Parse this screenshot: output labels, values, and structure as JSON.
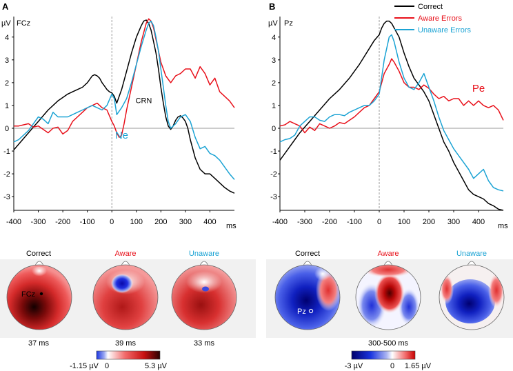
{
  "chart_data": [
    {
      "type": "line",
      "panel_label": "A",
      "channel": "FCz",
      "ylabel": "µV",
      "xlabel": "ms",
      "xlim": [
        -400,
        500
      ],
      "ylim": [
        -3.6,
        4.9
      ],
      "x_ticks": [
        -400,
        -300,
        -200,
        -100,
        0,
        100,
        200,
        300,
        400
      ],
      "y_ticks": [
        4,
        3,
        2,
        1,
        0,
        -1,
        -2,
        -3
      ],
      "x_tick_labels": [
        "-400",
        "-300",
        "-200",
        "-100",
        "0",
        "100",
        "200",
        "300",
        "400"
      ],
      "y_tick_labels": [
        "4",
        "3",
        "2",
        "1",
        "0",
        "-1",
        "-2",
        "-3"
      ],
      "annotations": [
        {
          "text": "CRN",
          "x": 130,
          "y": 1.1,
          "color": "#000000",
          "size": "small"
        },
        {
          "text": "Ne",
          "x": 40,
          "y": -0.45,
          "color": "#1ba3d4",
          "size": "large"
        }
      ],
      "series": [
        {
          "name": "Correct",
          "color": "#000000",
          "x": [
            -400,
            -380,
            -360,
            -340,
            -320,
            -300,
            -280,
            -260,
            -240,
            -220,
            -200,
            -180,
            -160,
            -140,
            -120,
            -100,
            -80,
            -70,
            -60,
            -50,
            -40,
            -30,
            -20,
            -10,
            0,
            10,
            20,
            40,
            60,
            80,
            100,
            120,
            130,
            140,
            150,
            160,
            170,
            180,
            190,
            200,
            210,
            220,
            230,
            240,
            250,
            260,
            270,
            280,
            290,
            300,
            310,
            320,
            340,
            360,
            380,
            400,
            420,
            440,
            460,
            480,
            500
          ],
          "y": [
            -0.95,
            -0.7,
            -0.45,
            -0.2,
            0.05,
            0.3,
            0.55,
            0.8,
            1.0,
            1.2,
            1.35,
            1.5,
            1.6,
            1.7,
            1.8,
            2.0,
            2.3,
            2.35,
            2.3,
            2.2,
            2.0,
            1.85,
            1.7,
            1.6,
            1.55,
            1.4,
            1.1,
            1.7,
            2.5,
            3.3,
            4.0,
            4.5,
            4.7,
            4.75,
            4.6,
            4.3,
            3.8,
            3.3,
            2.6,
            1.8,
            1.1,
            0.5,
            0.1,
            -0.05,
            0.1,
            0.35,
            0.5,
            0.55,
            0.45,
            0.3,
            0.0,
            -0.5,
            -1.3,
            -1.8,
            -2.0,
            -2.0,
            -2.2,
            -2.4,
            -2.6,
            -2.75,
            -2.85
          ]
        },
        {
          "name": "Aware Errors",
          "color": "#e8101a",
          "x": [
            -400,
            -380,
            -360,
            -340,
            -320,
            -300,
            -280,
            -260,
            -240,
            -220,
            -200,
            -180,
            -160,
            -140,
            -120,
            -100,
            -80,
            -60,
            -40,
            -20,
            0,
            10,
            20,
            30,
            40,
            50,
            60,
            80,
            100,
            120,
            140,
            150,
            160,
            170,
            180,
            190,
            200,
            220,
            240,
            260,
            280,
            300,
            320,
            340,
            360,
            380,
            400,
            420,
            440,
            460,
            480,
            500
          ],
          "y": [
            0.1,
            0.1,
            0.15,
            0.2,
            0.05,
            0.1,
            -0.05,
            -0.2,
            0.0,
            0.05,
            -0.25,
            -0.1,
            0.3,
            0.5,
            0.7,
            0.9,
            1.0,
            1.1,
            0.9,
            0.8,
            0.3,
            0.1,
            -0.2,
            -0.4,
            -0.3,
            0.2,
            0.8,
            1.8,
            2.8,
            3.8,
            4.6,
            4.8,
            4.7,
            4.4,
            3.9,
            3.4,
            2.9,
            2.3,
            2.0,
            2.3,
            2.4,
            2.6,
            2.6,
            2.2,
            2.7,
            2.4,
            1.9,
            2.2,
            1.6,
            1.4,
            1.2,
            0.9
          ]
        },
        {
          "name": "Unaware Errors",
          "color": "#1ba3d4",
          "x": [
            -400,
            -380,
            -360,
            -340,
            -320,
            -300,
            -280,
            -260,
            -240,
            -220,
            -200,
            -180,
            -160,
            -140,
            -120,
            -100,
            -80,
            -60,
            -40,
            -20,
            0,
            10,
            20,
            40,
            60,
            80,
            100,
            120,
            140,
            150,
            160,
            170,
            180,
            190,
            200,
            210,
            220,
            230,
            240,
            260,
            280,
            300,
            320,
            340,
            360,
            380,
            400,
            420,
            440,
            460,
            480,
            500
          ],
          "y": [
            -0.6,
            -0.5,
            -0.3,
            -0.1,
            0.2,
            0.5,
            0.4,
            0.2,
            0.7,
            0.5,
            0.5,
            0.5,
            0.6,
            0.7,
            0.8,
            0.9,
            1.0,
            0.9,
            0.8,
            1.0,
            1.5,
            1.3,
            0.6,
            0.9,
            1.3,
            2.0,
            2.8,
            3.6,
            4.3,
            4.6,
            4.7,
            4.5,
            4.0,
            3.4,
            2.6,
            1.8,
            1.0,
            0.3,
            0.0,
            0.2,
            0.5,
            0.6,
            0.3,
            -0.4,
            -0.9,
            -0.8,
            -1.1,
            -1.2,
            -1.4,
            -1.7,
            -2.0,
            -2.25
          ]
        }
      ]
    },
    {
      "type": "line",
      "panel_label": "B",
      "channel": "Pz",
      "ylabel": "µV",
      "xlabel": "ms",
      "xlim": [
        -400,
        500
      ],
      "ylim": [
        -3.6,
        4.9
      ],
      "x_ticks": [
        -400,
        -300,
        -200,
        -100,
        0,
        100,
        200,
        300,
        400
      ],
      "y_ticks": [
        4,
        3,
        2,
        1,
        0,
        -1,
        -2,
        -3
      ],
      "x_tick_labels": [
        "-400",
        "-300",
        "-200",
        "-100",
        "0",
        "100",
        "200",
        "300",
        "400"
      ],
      "y_tick_labels": [
        "4",
        "3",
        "2",
        "1",
        "0",
        "-1",
        "-2",
        "-3"
      ],
      "annotations": [
        {
          "text": "Pe",
          "x": 400,
          "y": 1.6,
          "color": "#e8101a",
          "size": "large"
        }
      ],
      "legend_position": "top-right",
      "series": [
        {
          "name": "Correct",
          "color": "#000000",
          "x": [
            -400,
            -380,
            -360,
            -340,
            -320,
            -300,
            -280,
            -260,
            -240,
            -220,
            -200,
            -180,
            -160,
            -140,
            -120,
            -100,
            -80,
            -60,
            -40,
            -20,
            0,
            10,
            20,
            30,
            40,
            50,
            60,
            80,
            100,
            120,
            140,
            160,
            180,
            200,
            220,
            240,
            260,
            280,
            300,
            320,
            340,
            360,
            380,
            400,
            420,
            440,
            460,
            480,
            500
          ],
          "y": [
            -1.4,
            -1.1,
            -0.8,
            -0.5,
            -0.2,
            0.05,
            0.3,
            0.55,
            0.8,
            1.05,
            1.3,
            1.5,
            1.7,
            1.95,
            2.2,
            2.5,
            2.8,
            3.15,
            3.5,
            3.85,
            4.1,
            4.4,
            4.6,
            4.7,
            4.7,
            4.6,
            4.4,
            4.0,
            3.3,
            2.7,
            2.2,
            1.9,
            1.6,
            1.2,
            0.6,
            0.0,
            -0.6,
            -1.0,
            -1.5,
            -1.9,
            -2.3,
            -2.7,
            -2.9,
            -3.0,
            -3.1,
            -3.3,
            -3.4,
            -3.55,
            -3.6
          ]
        },
        {
          "name": "Aware Errors",
          "color": "#e8101a",
          "x": [
            -400,
            -380,
            -360,
            -340,
            -320,
            -300,
            -280,
            -260,
            -240,
            -220,
            -200,
            -180,
            -160,
            -140,
            -120,
            -100,
            -80,
            -60,
            -40,
            -20,
            0,
            20,
            40,
            50,
            60,
            80,
            100,
            120,
            140,
            160,
            180,
            200,
            220,
            240,
            260,
            280,
            300,
            320,
            340,
            360,
            380,
            400,
            420,
            440,
            460,
            480,
            500
          ],
          "y": [
            0.1,
            0.15,
            0.3,
            0.2,
            0.1,
            -0.2,
            0.05,
            -0.1,
            0.2,
            0.1,
            0.0,
            0.1,
            0.25,
            0.2,
            0.35,
            0.5,
            0.7,
            0.9,
            1.0,
            1.3,
            1.6,
            2.4,
            2.8,
            3.05,
            2.9,
            2.5,
            2.0,
            1.8,
            1.8,
            1.7,
            1.9,
            1.75,
            1.5,
            1.3,
            1.4,
            1.2,
            1.3,
            1.3,
            1.0,
            1.2,
            1.0,
            1.2,
            1.0,
            0.9,
            1.0,
            0.8,
            0.35
          ]
        },
        {
          "name": "Unaware Errors",
          "color": "#1ba3d4",
          "x": [
            -400,
            -380,
            -360,
            -340,
            -320,
            -300,
            -280,
            -260,
            -240,
            -220,
            -200,
            -180,
            -160,
            -140,
            -120,
            -100,
            -80,
            -60,
            -40,
            -20,
            0,
            20,
            40,
            50,
            60,
            80,
            100,
            120,
            140,
            160,
            180,
            200,
            220,
            240,
            260,
            280,
            300,
            320,
            340,
            360,
            380,
            400,
            420,
            440,
            460,
            480,
            500
          ],
          "y": [
            -0.6,
            -0.5,
            -0.45,
            -0.3,
            0.1,
            0.3,
            0.5,
            0.5,
            0.35,
            0.3,
            0.5,
            0.6,
            0.6,
            0.55,
            0.7,
            0.8,
            0.9,
            1.0,
            1.0,
            1.2,
            1.5,
            3.0,
            4.0,
            4.1,
            3.8,
            2.9,
            2.2,
            1.8,
            1.7,
            2.0,
            2.4,
            1.8,
            1.2,
            0.5,
            -0.1,
            -0.5,
            -0.9,
            -1.2,
            -1.5,
            -1.8,
            -2.2,
            -2.0,
            -1.8,
            -2.3,
            -2.6,
            -2.7,
            -2.75
          ]
        }
      ]
    }
  ],
  "legend": {
    "items": [
      "Correct",
      "Aware Errors",
      "Unaware Errors"
    ],
    "colors": [
      "#000000",
      "#e8101a",
      "#1ba3d4"
    ]
  },
  "topomaps_a": {
    "electrode_label": "FCz",
    "maps": [
      {
        "title": "Correct",
        "title_color": "#000000",
        "time": "37 ms"
      },
      {
        "title": "Aware",
        "title_color": "#e8101a",
        "time": "39 ms"
      },
      {
        "title": "Unaware",
        "title_color": "#1ba3d4",
        "time": "33 ms"
      }
    ],
    "colorbar": {
      "min_label": "-1.15 µV",
      "zero_label": "0",
      "max_label": "5.3 µV"
    }
  },
  "topomaps_b": {
    "electrode_label": "Pz",
    "maps": [
      {
        "title": "Correct",
        "title_color": "#000000"
      },
      {
        "title": "Aware",
        "title_color": "#e8101a"
      },
      {
        "title": "Unaware",
        "title_color": "#1ba3d4"
      }
    ],
    "time": "300-500 ms",
    "colorbar": {
      "min_label": "-3 µV",
      "zero_label": "0",
      "max_label": "1.65 µV"
    }
  }
}
